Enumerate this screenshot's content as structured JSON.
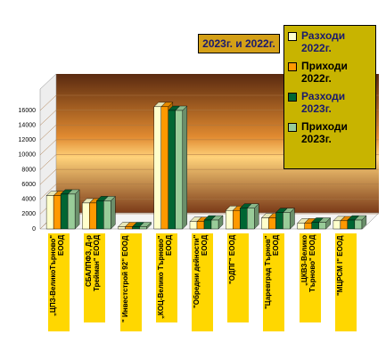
{
  "chart_data": {
    "type": "bar3d",
    "title": "2023г. и 2022г.",
    "categories": [
      "„ЦПЗ-ВеликоТърново\" ЕООД",
      "СБАЛПФЗ, Д-р Трейман\" ЕООД",
      "\" Инвестстрой 92\" ЕООД",
      "„КОЦ-Велико Търново\" ЕООД",
      "\"Обредни дейности\" ЕООД",
      "\"ОДПГ\" ЕООД",
      "\"Царевград Търнов\" ЕООД",
      "„ЦКВЗ-Велико Търново\" ЕООД",
      "\"МЦРСМ I\" ЕООД"
    ],
    "series": [
      {
        "name": "Разходи 2022г.",
        "color": "#ffffcc",
        "values": [
          4500,
          3500,
          300,
          16500,
          1000,
          2500,
          1500,
          800,
          1100
        ]
      },
      {
        "name": "Приходи 2022г.",
        "color": "#ff9900",
        "values": [
          4500,
          3500,
          300,
          16500,
          1000,
          2500,
          1500,
          800,
          1100
        ]
      },
      {
        "name": "Разходи 2023г.",
        "color": "#006633",
        "values": [
          4700,
          3800,
          300,
          16000,
          1200,
          2800,
          2200,
          900,
          1200
        ]
      },
      {
        "name": "Приходи 2023г.",
        "color": "#99cc99",
        "values": [
          4700,
          3800,
          300,
          16000,
          1200,
          2800,
          2200,
          900,
          1200
        ]
      }
    ],
    "ylim": [
      0,
      16000
    ],
    "yticks": [
      0,
      2000,
      4000,
      6000,
      8000,
      10000,
      12000,
      14000,
      16000
    ],
    "grid": true
  }
}
